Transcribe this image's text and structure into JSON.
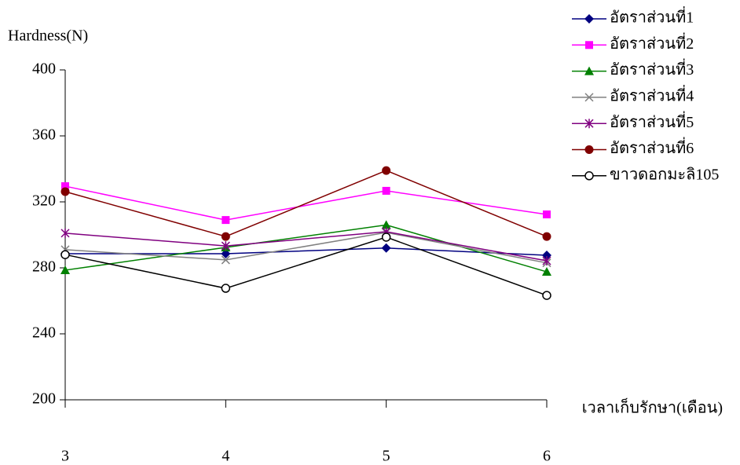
{
  "chart_data": {
    "type": "line",
    "y_label": "Hardness(N)",
    "x_label": "เวลาเก็บรักษา(เดือน)",
    "categories": [
      "3",
      "4",
      "5",
      "6"
    ],
    "ylim": [
      200,
      400
    ],
    "yticks": [
      200,
      240,
      280,
      320,
      360,
      400
    ],
    "series": [
      {
        "name": "อัตราส่วนที่1",
        "color": "#000080",
        "marker": "diamond",
        "values": [
          288.6,
          288.6,
          292,
          287.6
        ]
      },
      {
        "name": "อัตราส่วนที่2",
        "color": "#ff00ff",
        "marker": "square",
        "values": [
          329.5,
          309,
          326.7,
          312.4
        ]
      },
      {
        "name": "อัตราส่วนที่3",
        "color": "#008000",
        "marker": "triangle",
        "values": [
          278.6,
          292.4,
          306,
          277.6
        ]
      },
      {
        "name": "อัตราส่วนที่4",
        "color": "#808080",
        "marker": "x",
        "values": [
          291,
          284.8,
          301.4,
          283
        ]
      },
      {
        "name": "อัตราส่วนที่5",
        "color": "#800080",
        "marker": "star",
        "values": [
          301,
          293.3,
          301.9,
          284.3
        ]
      },
      {
        "name": "อัตราส่วนที่6",
        "color": "#800000",
        "marker": "circle",
        "values": [
          326.2,
          299,
          339,
          299
        ]
      },
      {
        "name": "ขาวดอกมะลิ105",
        "color": "#000000",
        "marker": "open-circle",
        "values": [
          288,
          267.6,
          298.6,
          263.3
        ]
      }
    ]
  }
}
